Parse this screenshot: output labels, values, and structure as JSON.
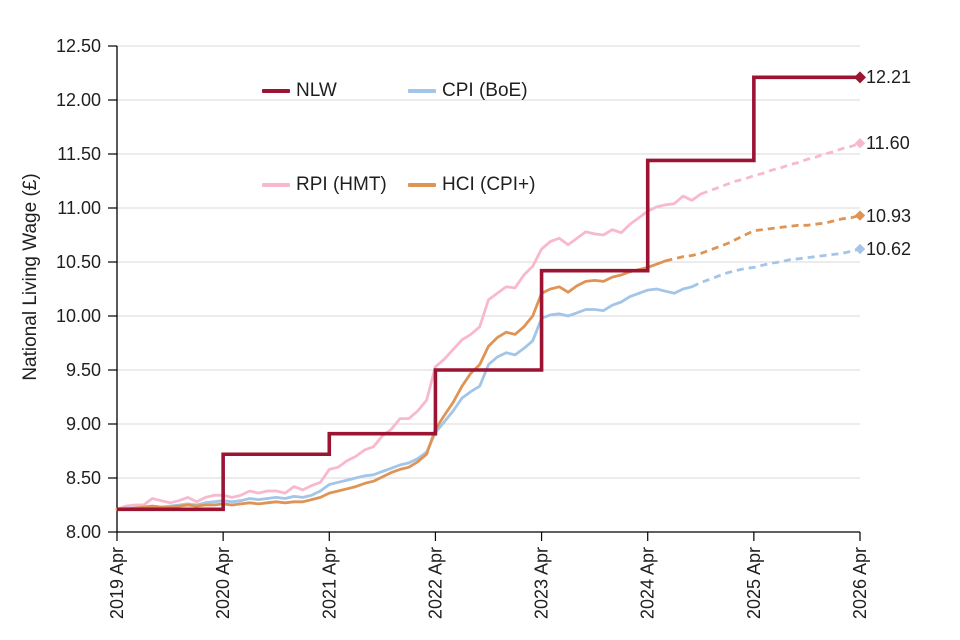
{
  "colors": {
    "nlw": "#9B1432",
    "rpi": "#F9B9CC",
    "cpi": "#A2C5E8",
    "hci": "#DF9455",
    "gridline": "#D8D8D8",
    "axis": "#000000",
    "text": "#1f1f1f"
  },
  "legend": {
    "items": [
      {
        "id": "nlw",
        "label": "NLW",
        "color": "#9B1432"
      },
      {
        "id": "cpi",
        "label": "CPI (BoE)",
        "color": "#A2C5E8"
      },
      {
        "id": "rpi",
        "label": "RPI (HMT)",
        "color": "#F9B9CC"
      },
      {
        "id": "hci",
        "label": "HCI (CPI+)",
        "color": "#DF9455"
      }
    ]
  },
  "chart_data": {
    "type": "line",
    "title": "",
    "xlabel": "",
    "ylabel": "National Living Wage (£)",
    "ylim": [
      8.0,
      12.5
    ],
    "ytick_step": 0.5,
    "grid": "horizontal",
    "legend_position": "top-inside",
    "yticks": [
      {
        "v": 8.0,
        "label": "8.00"
      },
      {
        "v": 8.5,
        "label": "8.50"
      },
      {
        "v": 9.0,
        "label": "9.00"
      },
      {
        "v": 9.5,
        "label": "9.50"
      },
      {
        "v": 10.0,
        "label": "10.00"
      },
      {
        "v": 10.5,
        "label": "10.50"
      },
      {
        "v": 11.0,
        "label": "11.00"
      },
      {
        "v": 11.5,
        "label": "11.50"
      },
      {
        "v": 12.0,
        "label": "12.00"
      },
      {
        "v": 12.5,
        "label": "12.50"
      }
    ],
    "x_months_range": [
      0,
      84
    ],
    "xticks": [
      {
        "m": 0,
        "label": "2019 Apr"
      },
      {
        "m": 12,
        "label": "2020 Apr"
      },
      {
        "m": 24,
        "label": "2021 Apr"
      },
      {
        "m": 36,
        "label": "2022 Apr"
      },
      {
        "m": 48,
        "label": "2023 Apr"
      },
      {
        "m": 60,
        "label": "2024 Apr"
      },
      {
        "m": 72,
        "label": "2025 Apr"
      },
      {
        "m": 84,
        "label": "2026 Apr"
      }
    ],
    "series": [
      {
        "name": "RPI (HMT)",
        "id": "rpi",
        "color": "#F9B9CC",
        "width": 2.8,
        "style": "solid-then-dashed",
        "solid_until_m": 66,
        "end_label": "11.60",
        "end_marker": "diamond",
        "values": [
          8.21,
          8.24,
          8.25,
          8.25,
          8.31,
          8.29,
          8.27,
          8.29,
          8.32,
          8.28,
          8.32,
          8.34,
          8.34,
          8.32,
          8.34,
          8.38,
          8.36,
          8.38,
          8.38,
          8.36,
          8.42,
          8.39,
          8.43,
          8.46,
          8.58,
          8.6,
          8.66,
          8.7,
          8.76,
          8.79,
          8.89,
          8.95,
          9.05,
          9.05,
          9.12,
          9.22,
          9.53,
          9.6,
          9.69,
          9.78,
          9.83,
          9.9,
          10.15,
          10.21,
          10.27,
          10.26,
          10.38,
          10.46,
          10.62,
          10.69,
          10.72,
          10.66,
          10.72,
          10.78,
          10.76,
          10.75,
          10.8,
          10.77,
          10.85,
          10.91,
          10.97,
          11.01,
          11.03,
          11.04,
          11.11,
          11.07,
          11.13,
          11.16,
          11.19,
          11.22,
          11.25,
          11.27,
          11.3,
          11.32,
          11.35,
          11.37,
          11.4,
          11.42,
          11.45,
          11.47,
          11.5,
          11.52,
          11.55,
          11.57,
          11.6
        ]
      },
      {
        "name": "CPI (BoE)",
        "id": "cpi",
        "color": "#A2C5E8",
        "width": 2.8,
        "style": "solid-then-dashed",
        "solid_until_m": 65,
        "end_label": "10.62",
        "end_marker": "diamond",
        "values": [
          8.21,
          8.22,
          8.22,
          8.23,
          8.24,
          8.23,
          8.24,
          8.25,
          8.26,
          8.25,
          8.27,
          8.28,
          8.29,
          8.28,
          8.29,
          8.31,
          8.3,
          8.31,
          8.32,
          8.31,
          8.33,
          8.32,
          8.34,
          8.38,
          8.44,
          8.46,
          8.48,
          8.5,
          8.52,
          8.53,
          8.56,
          8.59,
          8.62,
          8.64,
          8.68,
          8.74,
          8.92,
          9.02,
          9.12,
          9.24,
          9.3,
          9.35,
          9.55,
          9.62,
          9.66,
          9.64,
          9.7,
          9.77,
          9.98,
          10.01,
          10.02,
          10.0,
          10.03,
          10.06,
          10.06,
          10.05,
          10.1,
          10.13,
          10.18,
          10.21,
          10.24,
          10.25,
          10.23,
          10.21,
          10.25,
          10.27,
          10.31,
          10.34,
          10.37,
          10.4,
          10.42,
          10.44,
          10.45,
          10.47,
          10.49,
          10.5,
          10.52,
          10.53,
          10.54,
          10.55,
          10.56,
          10.57,
          10.58,
          10.6,
          10.62
        ]
      },
      {
        "name": "HCI (CPI+)",
        "id": "hci",
        "color": "#DF9455",
        "width": 2.8,
        "style": "solid-then-dashed",
        "solid_until_m": 62,
        "end_label": "10.93",
        "end_marker": "diamond",
        "values": [
          8.21,
          8.21,
          8.22,
          8.23,
          8.24,
          8.23,
          8.23,
          8.24,
          8.25,
          8.24,
          8.25,
          8.25,
          8.26,
          8.25,
          8.26,
          8.27,
          8.26,
          8.27,
          8.28,
          8.27,
          8.28,
          8.28,
          8.3,
          8.32,
          8.36,
          8.38,
          8.4,
          8.42,
          8.45,
          8.47,
          8.51,
          8.55,
          8.58,
          8.6,
          8.65,
          8.72,
          8.95,
          9.08,
          9.2,
          9.35,
          9.47,
          9.55,
          9.72,
          9.8,
          9.85,
          9.83,
          9.9,
          10.0,
          10.21,
          10.25,
          10.27,
          10.22,
          10.28,
          10.32,
          10.33,
          10.32,
          10.36,
          10.38,
          10.41,
          10.43,
          10.45,
          10.48,
          10.51,
          10.53,
          10.55,
          10.56,
          10.58,
          10.61,
          10.64,
          10.67,
          10.71,
          10.75,
          10.79,
          10.8,
          10.81,
          10.82,
          10.83,
          10.84,
          10.84,
          10.85,
          10.86,
          10.88,
          10.9,
          10.91,
          10.93
        ]
      },
      {
        "name": "NLW",
        "id": "nlw",
        "color": "#9B1432",
        "width": 3.6,
        "style": "step",
        "end_label": "12.21",
        "end_marker": "diamond",
        "step_values": [
          8.21,
          8.72,
          8.91,
          9.5,
          10.42,
          11.44,
          12.21
        ],
        "step_boundaries_m": [
          0,
          12,
          24,
          36,
          48,
          60,
          72,
          84
        ]
      }
    ]
  }
}
